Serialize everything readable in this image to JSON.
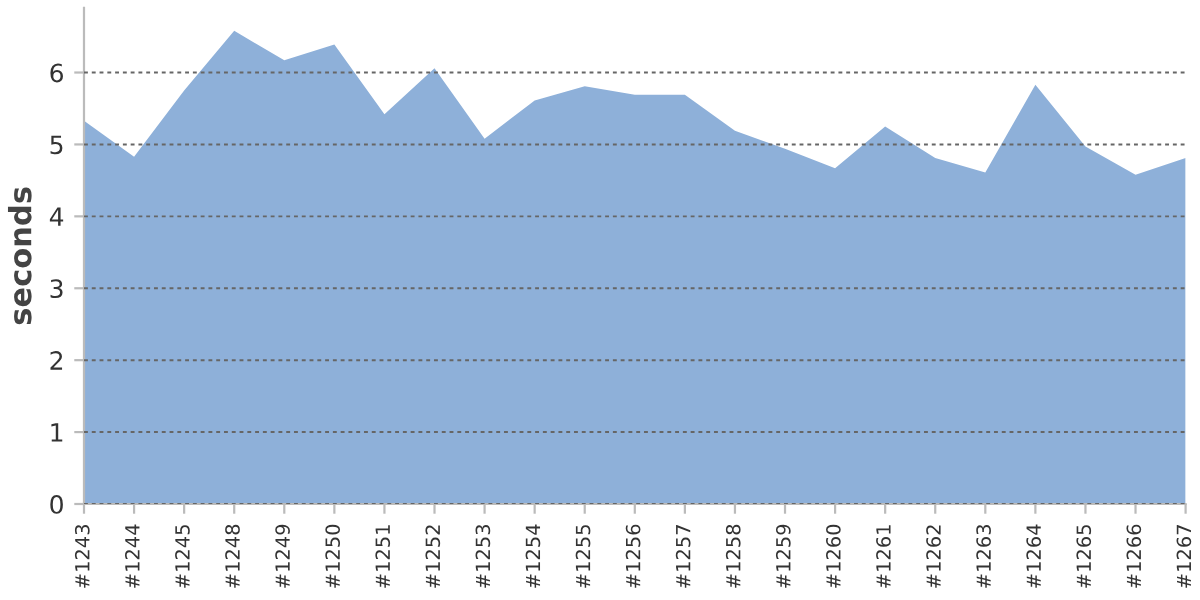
{
  "chart_data": {
    "type": "area",
    "ylabel": "seconds",
    "categories": [
      "#1243",
      "#1244",
      "#1245",
      "#1248",
      "#1249",
      "#1250",
      "#1251",
      "#1252",
      "#1253",
      "#1254",
      "#1255",
      "#1256",
      "#1257",
      "#1258",
      "#1259",
      "#1260",
      "#1261",
      "#1262",
      "#1263",
      "#1264",
      "#1265",
      "#1266",
      "#1267"
    ],
    "series": [
      {
        "color": "#8eb0d9",
        "values": [
          5.33,
          4.83,
          5.75,
          6.58,
          6.17,
          6.39,
          5.42,
          6.06,
          5.08,
          5.61,
          5.81,
          5.69,
          5.69,
          5.19,
          4.94,
          4.67,
          5.25,
          4.81,
          4.61,
          5.83,
          4.97,
          4.58,
          4.81
        ]
      }
    ],
    "ylim": [
      0,
      6.9
    ],
    "yticks": [
      0,
      1,
      2,
      3,
      4,
      5,
      6
    ],
    "grid": "y"
  }
}
